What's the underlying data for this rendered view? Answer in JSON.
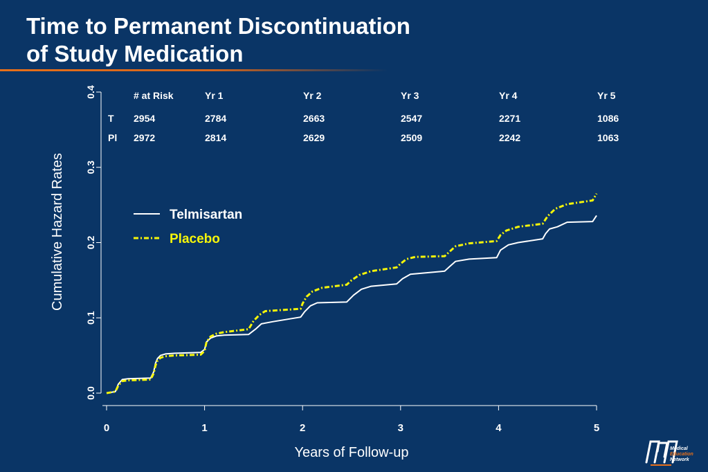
{
  "slide": {
    "title_line1": "Time to Permanent Discontinuation",
    "title_line2": "of Study Medication"
  },
  "colors": {
    "background": "#0a3566",
    "telmisartan": "#ffffff",
    "placebo": "#f5f50a",
    "accent": "#e8701a"
  },
  "logo": {
    "line1": "Medical",
    "line2": "Education",
    "line3": "Network",
    "icon": "mem-logo-icon"
  },
  "chart_data": {
    "type": "line",
    "xlabel": "Years of Follow-up",
    "ylabel": "Cumulative Hazard Rates",
    "xlim": [
      0,
      5
    ],
    "ylim": [
      0,
      0.4
    ],
    "xticks": [
      "0",
      "1",
      "2",
      "3",
      "4",
      "5"
    ],
    "yticks": [
      "0.0",
      "0.1",
      "0.2",
      "0.3",
      "0.4"
    ],
    "grid": false,
    "legend_position": "upper-left",
    "series": [
      {
        "name": "Telmisartan",
        "style": "solid",
        "color": "#ffffff",
        "x": [
          0,
          0.09,
          0.12,
          0.16,
          0.22,
          0.45,
          0.48,
          0.5,
          0.52,
          0.55,
          0.6,
          0.7,
          0.96,
          1.0,
          1.02,
          1.06,
          1.12,
          1.2,
          1.45,
          1.52,
          1.58,
          1.7,
          1.98,
          2.02,
          2.08,
          2.15,
          2.45,
          2.52,
          2.6,
          2.7,
          2.96,
          3.02,
          3.1,
          3.45,
          3.5,
          3.56,
          3.7,
          3.98,
          4.02,
          4.1,
          4.2,
          4.45,
          4.48,
          4.52,
          4.6,
          4.7,
          4.96,
          5.0
        ],
        "y": [
          0,
          0.002,
          0.012,
          0.018,
          0.019,
          0.02,
          0.028,
          0.04,
          0.046,
          0.05,
          0.052,
          0.053,
          0.054,
          0.058,
          0.068,
          0.073,
          0.076,
          0.077,
          0.078,
          0.085,
          0.092,
          0.095,
          0.101,
          0.108,
          0.116,
          0.12,
          0.121,
          0.13,
          0.138,
          0.142,
          0.145,
          0.152,
          0.158,
          0.162,
          0.168,
          0.175,
          0.178,
          0.18,
          0.19,
          0.197,
          0.2,
          0.205,
          0.212,
          0.218,
          0.221,
          0.227,
          0.228,
          0.236
        ]
      },
      {
        "name": "Placebo",
        "style": "dash-dot",
        "color": "#f5f50a",
        "x": [
          0,
          0.09,
          0.12,
          0.16,
          0.22,
          0.45,
          0.48,
          0.5,
          0.52,
          0.55,
          0.6,
          0.7,
          0.96,
          1.0,
          1.02,
          1.06,
          1.12,
          1.2,
          1.45,
          1.5,
          1.56,
          1.62,
          1.98,
          2.0,
          2.04,
          2.1,
          2.2,
          2.45,
          2.5,
          2.58,
          2.7,
          2.96,
          3.0,
          3.06,
          3.15,
          3.45,
          3.5,
          3.56,
          3.7,
          3.98,
          4.02,
          4.08,
          4.2,
          4.45,
          4.5,
          4.58,
          4.7,
          4.96,
          5.0
        ],
        "y": [
          0,
          0.002,
          0.01,
          0.016,
          0.017,
          0.018,
          0.026,
          0.037,
          0.043,
          0.047,
          0.049,
          0.05,
          0.051,
          0.056,
          0.068,
          0.075,
          0.079,
          0.081,
          0.085,
          0.096,
          0.104,
          0.109,
          0.112,
          0.119,
          0.128,
          0.135,
          0.14,
          0.144,
          0.15,
          0.157,
          0.162,
          0.167,
          0.172,
          0.178,
          0.181,
          0.182,
          0.188,
          0.195,
          0.199,
          0.202,
          0.21,
          0.216,
          0.221,
          0.225,
          0.235,
          0.245,
          0.251,
          0.256,
          0.265
        ]
      }
    ],
    "risk_table": {
      "header": [
        "# at Risk",
        "Yr 1",
        "Yr 2",
        "Yr 3",
        "Yr 4",
        "Yr 5"
      ],
      "rows": [
        {
          "label": "T",
          "values": [
            "2954",
            "2784",
            "2663",
            "2547",
            "2271",
            "1086"
          ]
        },
        {
          "label": "Pl",
          "values": [
            "2972",
            "2814",
            "2629",
            "2509",
            "2242",
            "1063"
          ]
        }
      ]
    }
  }
}
